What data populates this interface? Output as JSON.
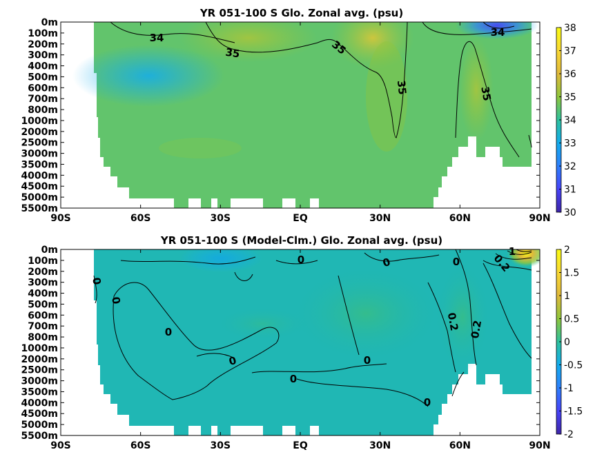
{
  "chart_data": [
    {
      "type": "heatmap",
      "title": "YR 051-100 S Glo. Zonal avg. (psu)",
      "x_ticks": [
        "90S",
        "60S",
        "30S",
        "EQ",
        "30N",
        "60N",
        "90N"
      ],
      "x_values": [
        -90,
        -60,
        -30,
        0,
        30,
        60,
        90
      ],
      "y_ticks": [
        "0m",
        "100m",
        "200m",
        "300m",
        "400m",
        "500m",
        "600m",
        "700m",
        "800m",
        "1000m",
        "2000m",
        "2500m",
        "3000m",
        "3500m",
        "4000m",
        "4500m",
        "5000m",
        "5500m"
      ],
      "colorbar": {
        "min": 30,
        "max": 38,
        "ticks": [
          30,
          31,
          32,
          33,
          34,
          35,
          36,
          37,
          38
        ],
        "colors": [
          "#3e26a8",
          "#4743f8",
          "#2d7ffb",
          "#13aced",
          "#2ec19e",
          "#8fc63d",
          "#e0b93b",
          "#f9d835",
          "#f9fb15"
        ]
      },
      "contour_labels": [
        {
          "text": "34",
          "lat": -52,
          "depth": "100m"
        },
        {
          "text": "34",
          "lat": 77,
          "depth": "100m"
        },
        {
          "text": "35",
          "lat": -28,
          "depth": "300m"
        },
        {
          "text": "35",
          "lat": 15,
          "depth": "200m"
        },
        {
          "text": "35",
          "lat": 35,
          "depth": "600m"
        },
        {
          "text": "35",
          "lat": 67,
          "depth": "700m"
        }
      ]
    },
    {
      "type": "heatmap",
      "title": "YR 051-100 S (Model-Clm.) Glo. Zonal avg. (psu)",
      "x_ticks": [
        "90S",
        "60S",
        "30S",
        "EQ",
        "30N",
        "60N",
        "90N"
      ],
      "x_values": [
        -90,
        -60,
        -30,
        0,
        30,
        60,
        90
      ],
      "y_ticks": [
        "0m",
        "100m",
        "200m",
        "300m",
        "400m",
        "500m",
        "600m",
        "700m",
        "800m",
        "1000m",
        "2000m",
        "2500m",
        "3000m",
        "3500m",
        "4000m",
        "4500m",
        "5000m",
        "5500m"
      ],
      "colorbar": {
        "min": -2,
        "max": 2,
        "ticks": [
          -2,
          -1.5,
          -1,
          -0.5,
          0,
          0.5,
          1,
          1.5,
          2
        ],
        "tick_labels": [
          "-2",
          "-1.5",
          "-1",
          "-0.5",
          "0",
          "0.5",
          "1",
          "1.5",
          "2"
        ],
        "colors": [
          "#3e26a8",
          "#4743f8",
          "#2d7ffb",
          "#13aced",
          "#2ec19e",
          "#8fc63d",
          "#e0b93b",
          "#f9d835",
          "#f9fb15"
        ]
      },
      "contour_labels": [
        {
          "text": "0",
          "lat": -80,
          "depth": "300m"
        },
        {
          "text": "0",
          "lat": -75,
          "depth": "500m"
        },
        {
          "text": "0",
          "lat": -50,
          "depth": "1000m"
        },
        {
          "text": "0",
          "lat": -26,
          "depth": "2000m"
        },
        {
          "text": "0",
          "lat": 0,
          "depth": "100m"
        },
        {
          "text": "0",
          "lat": -2,
          "depth": "2500m"
        },
        {
          "text": "0",
          "lat": 24,
          "depth": "2000m"
        },
        {
          "text": "0",
          "lat": 32,
          "depth": "100m"
        },
        {
          "text": "0",
          "lat": 47,
          "depth": "3500m"
        },
        {
          "text": "0",
          "lat": 57,
          "depth": "100m"
        },
        {
          "text": "0.2",
          "lat": 55,
          "depth": "700m"
        },
        {
          "text": "0.2",
          "lat": 63,
          "depth": "800m"
        },
        {
          "text": "0.2",
          "lat": 72,
          "depth": "200m"
        },
        {
          "text": "1",
          "lat": 77,
          "depth": "0m"
        }
      ]
    }
  ]
}
